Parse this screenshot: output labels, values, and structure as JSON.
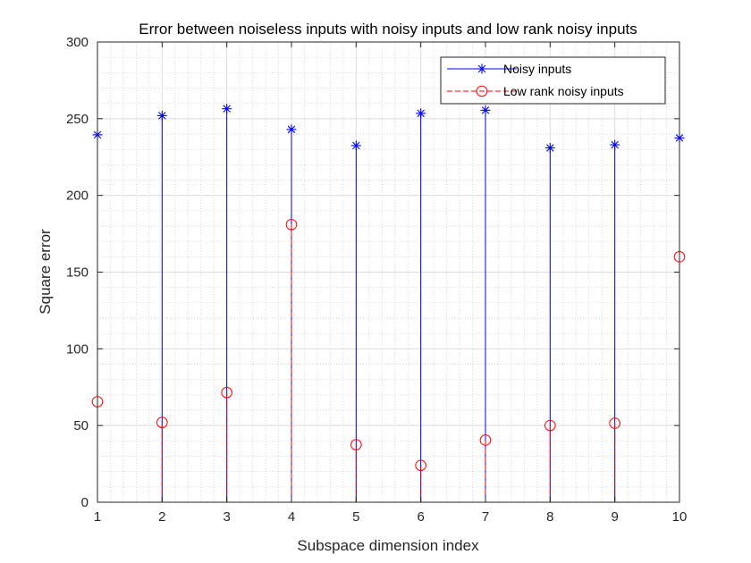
{
  "chart_data": {
    "type": "stem",
    "title": "Error between noiseless inputs with noisy inputs and low rank noisy inputs",
    "xlabel": "Subspace dimension index",
    "ylabel": "Square error",
    "x": [
      1,
      2,
      3,
      4,
      5,
      6,
      7,
      8,
      9,
      10
    ],
    "xlim": [
      1,
      10
    ],
    "ylim": [
      0,
      300
    ],
    "xticks": [
      1,
      2,
      3,
      4,
      5,
      6,
      7,
      8,
      9,
      10
    ],
    "yticks": [
      0,
      50,
      100,
      150,
      200,
      250,
      300
    ],
    "grid": true,
    "minor_grid": true,
    "legend_position": "top-right",
    "series": [
      {
        "name": "Noisy inputs",
        "values": [
          239.5,
          252,
          256.5,
          243,
          232.5,
          253.5,
          255.5,
          231,
          233,
          237.5
        ],
        "color": "#0000ff",
        "marker": "asterisk",
        "line_style": "solid"
      },
      {
        "name": "Low rank noisy inputs",
        "values": [
          65.5,
          52,
          71.5,
          181,
          37.5,
          24,
          40.5,
          50,
          51.5,
          160
        ],
        "color": "#ff0000",
        "marker": "circle",
        "line_style": "dashed"
      }
    ]
  }
}
